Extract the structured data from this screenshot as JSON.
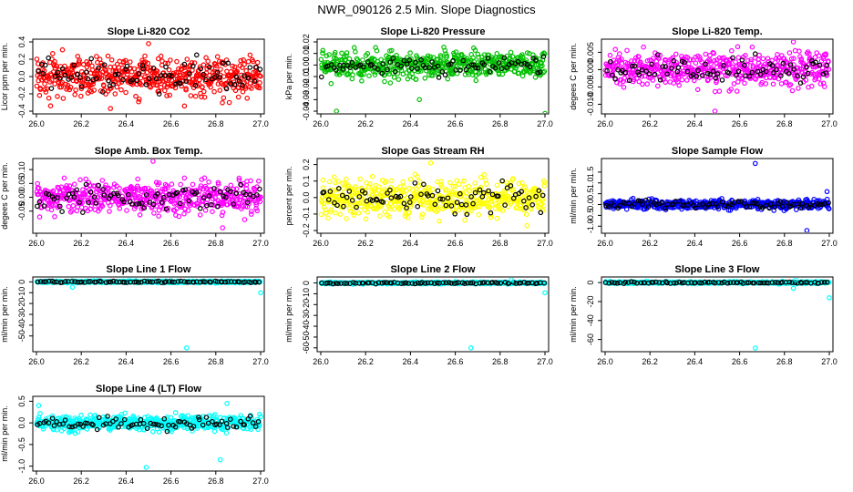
{
  "page": {
    "title": "NWR_090126  2.5 Min. Slope Diagnostics"
  },
  "colors": {
    "highlight": "#000000"
  },
  "chart_data": [
    {
      "type": "scatter",
      "title": "Slope Li-820 CO2",
      "xlabel": "",
      "ylabel": "Licor ppm per min.",
      "color": "#ff0000",
      "xlim": [
        26.0,
        27.0
      ],
      "ylim": [
        -0.4,
        0.4
      ],
      "yticks": [
        -0.4,
        -0.2,
        0.0,
        0.2,
        0.4
      ],
      "ytick_labels": [
        "-0.4",
        "-0.2",
        "0.0",
        "0.2",
        "0.4"
      ],
      "xticks": [
        26.0,
        26.2,
        26.4,
        26.6,
        26.8,
        27.0
      ],
      "xtick_labels": [
        "26.0",
        "26.2",
        "26.4",
        "26.6",
        "26.8",
        "27.0"
      ],
      "spread": 0.16,
      "outliers": [
        {
          "x": 26.33,
          "y": -0.37
        },
        {
          "x": 26.66,
          "y": -0.34
        },
        {
          "x": 26.5,
          "y": 0.38
        },
        {
          "x": 26.86,
          "y": -0.3
        }
      ]
    },
    {
      "type": "scatter",
      "title": "Slope Li-820 Pressure",
      "xlabel": "",
      "ylabel": "kPa per min.",
      "color": "#00c000",
      "xlim": [
        26.0,
        27.0
      ],
      "ylim": [
        -0.04,
        0.02
      ],
      "yticks": [
        -0.04,
        -0.03,
        -0.02,
        -0.01,
        0.0,
        0.01,
        0.02
      ],
      "ytick_labels": [
        "-0.04",
        "-0.03",
        "-0.02",
        "-0.01",
        "0.00",
        "0.01",
        "0.02"
      ],
      "xticks": [
        26.0,
        26.2,
        26.4,
        26.6,
        26.8,
        27.0
      ],
      "xtick_labels": [
        "26.0",
        "26.2",
        "26.4",
        "26.6",
        "26.8",
        "27.0"
      ],
      "spread": 0.008,
      "outliers": [
        {
          "x": 26.07,
          "y": -0.04
        },
        {
          "x": 27.0,
          "y": -0.042
        },
        {
          "x": 26.44,
          "y": -0.03
        }
      ]
    },
    {
      "type": "scatter",
      "title": "Slope Li-820 Temp.",
      "xlabel": "",
      "ylabel": "degees C per min.",
      "color": "#ff00ff",
      "xlim": [
        26.0,
        27.0
      ],
      "ylim": [
        -0.012,
        0.008
      ],
      "yticks": [
        -0.01,
        -0.005,
        0.0,
        0.005
      ],
      "ytick_labels": [
        "-0.010",
        "-0.005",
        "0.000",
        "0.005"
      ],
      "xticks": [
        26.0,
        26.2,
        26.4,
        26.6,
        26.8,
        27.0
      ],
      "xtick_labels": [
        "26.0",
        "26.2",
        "26.4",
        "26.6",
        "26.8",
        "27.0"
      ],
      "spread": 0.0035,
      "outliers": [
        {
          "x": 26.84,
          "y": 0.008
        },
        {
          "x": 26.49,
          "y": -0.012
        }
      ]
    },
    {
      "type": "scatter",
      "title": "Slope Amb. Box Temp.",
      "xlabel": "",
      "ylabel": "degees C per min.",
      "color": "#ff00ff",
      "xlim": [
        26.0,
        27.0
      ],
      "ylim": [
        -0.12,
        0.13
      ],
      "yticks": [
        -0.05,
        0.0,
        0.05,
        0.1
      ],
      "ytick_labels": [
        "-0.05",
        "0.00",
        "0.05",
        "0.10"
      ],
      "xticks": [
        26.0,
        26.2,
        26.4,
        26.6,
        26.8,
        27.0
      ],
      "xtick_labels": [
        "26.0",
        "26.2",
        "26.4",
        "26.6",
        "26.8",
        "27.0"
      ],
      "spread": 0.04,
      "outliers": [
        {
          "x": 26.52,
          "y": 0.13
        },
        {
          "x": 26.83,
          "y": -0.11
        }
      ]
    },
    {
      "type": "scatter",
      "title": "Slope Gas Stream RH",
      "xlabel": "",
      "ylabel": "percent per min.",
      "color": "#ffff00",
      "xlim": [
        26.0,
        27.0
      ],
      "ylim": [
        -0.2,
        0.22
      ],
      "yticks": [
        -0.2,
        -0.1,
        0.0,
        0.1,
        0.2
      ],
      "ytick_labels": [
        "-0.2",
        "-0.1",
        "0.0",
        "0.1",
        "0.2"
      ],
      "xticks": [
        26.0,
        26.2,
        26.4,
        26.6,
        26.8,
        27.0
      ],
      "xtick_labels": [
        "26.0",
        "26.2",
        "26.4",
        "26.6",
        "26.8",
        "27.0"
      ],
      "spread": 0.075,
      "outliers": [
        {
          "x": 26.49,
          "y": 0.21
        },
        {
          "x": 26.92,
          "y": -0.17
        }
      ]
    },
    {
      "type": "scatter",
      "title": "Slope Sample Flow",
      "xlabel": "",
      "ylabel": "ml/min per min.",
      "color": "#0000ff",
      "xlim": [
        26.0,
        27.0
      ],
      "ylim": [
        -1.2,
        2.0
      ],
      "yticks": [
        -1.0,
        -0.5,
        0.0,
        0.5,
        1.0,
        1.5
      ],
      "ytick_labels": [
        "-1.0",
        "-0.5",
        "0.0",
        "0.5",
        "1.0",
        "1.5"
      ],
      "xticks": [
        26.0,
        26.2,
        26.4,
        26.6,
        26.8,
        27.0
      ],
      "xtick_labels": [
        "26.0",
        "26.2",
        "26.4",
        "26.6",
        "26.8",
        "27.0"
      ],
      "spread": 0.15,
      "outliers": [
        {
          "x": 26.67,
          "y": 1.9
        },
        {
          "x": 26.9,
          "y": -1.2
        },
        {
          "x": 26.99,
          "y": 0.6
        }
      ]
    },
    {
      "type": "scatter",
      "title": "Slope Line 1 Flow",
      "xlabel": "",
      "ylabel": "ml/min per min.",
      "color": "#00ffff",
      "xlim": [
        26.0,
        27.0
      ],
      "ylim": [
        -62,
        2
      ],
      "yticks": [
        -50,
        -40,
        -30,
        -20,
        -10,
        0
      ],
      "ytick_labels": [
        "-50",
        "-40",
        "-30",
        "-20",
        "-10",
        "0"
      ],
      "xticks": [
        26.0,
        26.2,
        26.4,
        26.6,
        26.8,
        27.0
      ],
      "xtick_labels": [
        "26.0",
        "26.2",
        "26.4",
        "26.6",
        "26.8",
        "27.0"
      ],
      "spread": 0.6,
      "outliers": [
        {
          "x": 26.67,
          "y": -61
        },
        {
          "x": 27.0,
          "y": -10
        },
        {
          "x": 26.16,
          "y": -5
        }
      ]
    },
    {
      "type": "scatter",
      "title": "Slope Line 2 Flow",
      "xlabel": "",
      "ylabel": "ml/min per min.",
      "color": "#00ffff",
      "xlim": [
        26.0,
        27.0
      ],
      "ylim": [
        -61,
        3
      ],
      "yticks": [
        -60,
        -50,
        -40,
        -30,
        -20,
        -10,
        0
      ],
      "ytick_labels": [
        "-60",
        "-50",
        "-40",
        "-30",
        "-20",
        "-10",
        "0"
      ],
      "xticks": [
        26.0,
        26.2,
        26.4,
        26.6,
        26.8,
        27.0
      ],
      "xtick_labels": [
        "26.0",
        "26.2",
        "26.4",
        "26.6",
        "26.8",
        "27.0"
      ],
      "spread": 0.6,
      "outliers": [
        {
          "x": 26.67,
          "y": -60
        },
        {
          "x": 27.0,
          "y": -9
        },
        {
          "x": 26.85,
          "y": 3
        }
      ]
    },
    {
      "type": "scatter",
      "title": "Slope Line 3 Flow",
      "xlabel": "",
      "ylabel": "ml/min per min.",
      "color": "#00ffff",
      "xlim": [
        26.0,
        27.0
      ],
      "ylim": [
        -70,
        3
      ],
      "yticks": [
        -60,
        -40,
        -20,
        0
      ],
      "ytick_labels": [
        "-60",
        "-40",
        "-20",
        "0"
      ],
      "xticks": [
        26.0,
        26.2,
        26.4,
        26.6,
        26.8,
        27.0
      ],
      "xtick_labels": [
        "26.0",
        "26.2",
        "26.4",
        "26.6",
        "26.8",
        "27.0"
      ],
      "spread": 0.7,
      "outliers": [
        {
          "x": 26.67,
          "y": -69
        },
        {
          "x": 27.0,
          "y": -16
        },
        {
          "x": 26.84,
          "y": -6
        },
        {
          "x": 26.85,
          "y": 3
        }
      ]
    },
    {
      "type": "scatter",
      "title": "Slope Line 4 (LT) Flow",
      "xlabel": "",
      "ylabel": "ml/min per min.",
      "color": "#00ffff",
      "xlim": [
        26.0,
        27.0
      ],
      "ylim": [
        -1.05,
        0.55
      ],
      "yticks": [
        -1.0,
        -0.5,
        0.0,
        0.5
      ],
      "ytick_labels": [
        "-1.0",
        "-0.5",
        "0.0",
        "0.5"
      ],
      "xticks": [
        26.0,
        26.2,
        26.4,
        26.6,
        26.8,
        27.0
      ],
      "xtick_labels": [
        "26.0",
        "26.2",
        "26.4",
        "26.6",
        "26.8",
        "27.0"
      ],
      "spread": 0.12,
      "outliers": [
        {
          "x": 26.49,
          "y": -1.03
        },
        {
          "x": 26.82,
          "y": -0.85
        },
        {
          "x": 26.85,
          "y": 0.45
        },
        {
          "x": 26.01,
          "y": 0.4
        }
      ]
    }
  ]
}
